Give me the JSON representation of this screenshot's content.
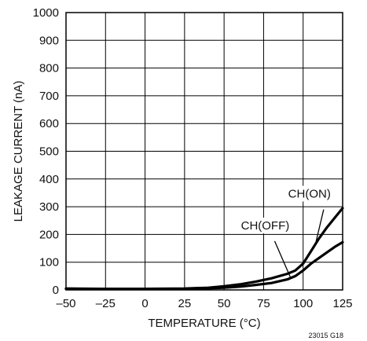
{
  "figure_id": "23015 G18",
  "chart_data": {
    "type": "line",
    "xlabel": "TEMPERATURE (°C)",
    "ylabel": "LEAKAGE CURRENT (nA)",
    "xlim": [
      -50,
      125
    ],
    "ylim": [
      0,
      1000
    ],
    "x_ticks": [
      -50,
      -25,
      0,
      25,
      50,
      75,
      100,
      125
    ],
    "x_tick_labels": [
      "–50",
      "–25",
      "0",
      "25",
      "50",
      "75",
      "100",
      "125"
    ],
    "y_ticks": [
      0,
      100,
      200,
      300,
      400,
      500,
      600,
      700,
      800,
      900,
      1000
    ],
    "y_tick_labels": [
      "0",
      "100",
      "200",
      "300",
      "400",
      "500",
      "600",
      "700",
      "800",
      "900",
      "1000"
    ],
    "grid": true,
    "series": [
      {
        "name": "CH(ON)",
        "points": [
          [
            -50,
            5
          ],
          [
            -25,
            4
          ],
          [
            0,
            4
          ],
          [
            25,
            5
          ],
          [
            40,
            8
          ],
          [
            50,
            13
          ],
          [
            60,
            20
          ],
          [
            70,
            30
          ],
          [
            80,
            42
          ],
          [
            90,
            58
          ],
          [
            95,
            70
          ],
          [
            100,
            95
          ],
          [
            105,
            140
          ],
          [
            110,
            185
          ],
          [
            115,
            225
          ],
          [
            120,
            260
          ],
          [
            125,
            295
          ]
        ]
      },
      {
        "name": "CH(OFF)",
        "points": [
          [
            -50,
            4
          ],
          [
            -25,
            3
          ],
          [
            0,
            3
          ],
          [
            25,
            4
          ],
          [
            40,
            6
          ],
          [
            50,
            8
          ],
          [
            60,
            12
          ],
          [
            70,
            18
          ],
          [
            80,
            25
          ],
          [
            90,
            38
          ],
          [
            95,
            50
          ],
          [
            100,
            70
          ],
          [
            105,
            95
          ],
          [
            110,
            115
          ],
          [
            115,
            135
          ],
          [
            120,
            155
          ],
          [
            125,
            172
          ]
        ]
      }
    ]
  }
}
